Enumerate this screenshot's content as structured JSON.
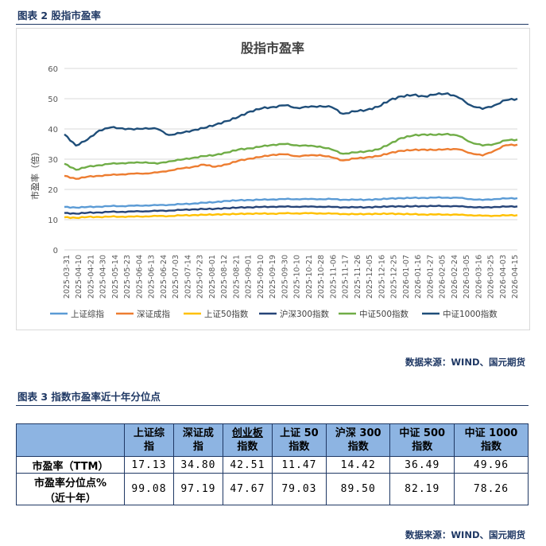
{
  "figure2": {
    "caption": "图表 2 股指市盈率",
    "source": "数据来源：WIND、国元期货"
  },
  "chart_data": {
    "type": "line",
    "title": "股指市盈率",
    "ylabel": "市盈率（倍）",
    "xlabel": "",
    "ylim": [
      0,
      60
    ],
    "yticks": [
      0,
      10,
      20,
      30,
      40,
      50,
      60
    ],
    "grid": true,
    "legend_position": "bottom",
    "x": [
      "2025-03-31",
      "2025-04-10",
      "2025-04-20",
      "2025-04-30",
      "2025-05-10",
      "2025-05-20",
      "2025-05-30",
      "2025-06-09",
      "2025-06-19",
      "2025-06-29",
      "2025-07-09",
      "2025-07-19",
      "2025-07-29",
      "2025-08-08",
      "2025-08-18",
      "2025-08-28",
      "2025-09-07",
      "2025-09-17",
      "2025-09-27",
      "2025-10-07",
      "2025-10-17",
      "2025-10-27",
      "2025-11-06",
      "2025-11-16",
      "2025-11-26",
      "2025-12-06",
      "2025-12-16",
      "2025-12-26",
      "2026-01-05",
      "2026-01-15",
      "2026-01-25",
      "2026-02-04",
      "2026-02-14",
      "2026-02-24",
      "2026-03-06",
      "2026-03-16",
      "2026-03-26",
      "2026-04-05",
      "2026-04-15",
      "2026-04-20"
    ],
    "x_tick_labels": [
      "2025-03-31",
      "2025-04-10",
      "2025-04-21",
      "2025-04-30",
      "2025-05-14",
      "2025-05-23",
      "2025-06-04",
      "2025-06-13",
      "2025-06-24",
      "2025-07-03",
      "2025-07-14",
      "2025-07-23",
      "2025-08-01",
      "2025-08-12",
      "2025-08-21",
      "2025-09-01",
      "2025-09-10",
      "2025-09-19",
      "2025-09-30",
      "2025-10-10",
      "2025-10-21",
      "2025-10-28",
      "2025-11-06",
      "2025-11-17",
      "2025-11-26",
      "2025-12-05",
      "2025-12-16",
      "2025-12-25",
      "2026-01-07",
      "2026-01-16",
      "2026-01-27",
      "2026-02-05",
      "2026-02-24",
      "2026-03-05",
      "2026-03-16",
      "2026-03-25",
      "2026-04-03",
      "2026-04-15"
    ],
    "series": [
      {
        "name": "上证综指",
        "color": "#5b9bd5",
        "values": [
          14.2,
          14.0,
          14.2,
          14.3,
          14.5,
          14.5,
          14.6,
          14.7,
          14.8,
          14.9,
          15.1,
          15.3,
          15.6,
          15.8,
          16.2,
          16.4,
          16.5,
          16.6,
          16.7,
          16.8,
          16.8,
          16.8,
          16.8,
          16.8,
          16.6,
          16.6,
          16.6,
          16.7,
          17.0,
          17.1,
          17.2,
          17.2,
          17.3,
          17.3,
          17.2,
          16.8,
          16.5,
          16.8,
          17.0,
          17.1
        ]
      },
      {
        "name": "深证成指",
        "color": "#ed7d31",
        "values": [
          24.5,
          23.5,
          24.2,
          24.5,
          24.8,
          25.0,
          25.2,
          25.3,
          25.6,
          26.2,
          26.9,
          27.4,
          28.2,
          27.5,
          28.3,
          29.5,
          30.2,
          30.8,
          31.5,
          31.6,
          31.0,
          31.2,
          31.4,
          30.6,
          29.6,
          30.2,
          30.6,
          31.0,
          32.0,
          32.8,
          33.0,
          33.2,
          33.0,
          33.4,
          33.2,
          32.0,
          31.2,
          32.8,
          34.6,
          34.8
        ]
      },
      {
        "name": "上证50指数",
        "color": "#ffc000",
        "values": [
          10.8,
          10.6,
          10.9,
          10.9,
          11.0,
          11.0,
          11.0,
          11.1,
          11.2,
          11.2,
          11.4,
          11.5,
          11.6,
          11.7,
          11.8,
          11.9,
          12.0,
          12.0,
          12.0,
          12.1,
          12.1,
          12.1,
          12.1,
          12.0,
          11.9,
          11.8,
          11.9,
          11.9,
          12.0,
          11.9,
          11.8,
          11.7,
          11.7,
          11.7,
          11.6,
          11.5,
          11.3,
          11.3,
          11.4,
          11.5
        ]
      },
      {
        "name": "沪深300指数",
        "color": "#264478",
        "values": [
          12.2,
          12.0,
          12.3,
          12.4,
          12.6,
          12.6,
          12.7,
          12.8,
          12.9,
          13.0,
          13.2,
          13.4,
          13.5,
          13.6,
          13.8,
          14.0,
          14.1,
          14.2,
          14.3,
          14.3,
          14.3,
          14.3,
          14.3,
          14.2,
          14.1,
          14.1,
          14.1,
          14.2,
          14.4,
          14.4,
          14.4,
          14.5,
          14.5,
          14.5,
          14.4,
          14.2,
          14.0,
          14.2,
          14.3,
          14.4
        ]
      },
      {
        "name": "中证500指数",
        "color": "#70ad47",
        "values": [
          28.5,
          26.5,
          27.5,
          28.0,
          28.5,
          28.7,
          28.8,
          29.0,
          28.5,
          29.3,
          29.8,
          30.4,
          31.0,
          31.4,
          32.2,
          33.2,
          33.6,
          34.2,
          34.8,
          35.0,
          34.6,
          34.4,
          34.2,
          33.2,
          31.8,
          32.2,
          32.6,
          33.2,
          35.0,
          37.0,
          37.8,
          38.2,
          38.0,
          38.4,
          37.6,
          35.6,
          34.5,
          35.0,
          36.2,
          36.5
        ]
      },
      {
        "name": "中证1000指数",
        "color": "#1f4e79",
        "values": [
          38.2,
          34.5,
          36.5,
          39.5,
          40.5,
          40.2,
          39.8,
          40.3,
          40.0,
          38.0,
          38.6,
          39.5,
          40.3,
          41.4,
          42.6,
          44.0,
          45.8,
          46.8,
          47.3,
          47.8,
          47.0,
          47.2,
          47.6,
          47.2,
          45.0,
          45.8,
          46.3,
          47.3,
          49.5,
          50.8,
          51.2,
          50.8,
          51.4,
          51.8,
          50.2,
          47.8,
          46.6,
          47.8,
          49.5,
          50.0
        ]
      }
    ]
  },
  "figure3": {
    "caption": "图表 3 指数市盈率近十年分位点",
    "source": "数据来源：WIND、国元期货",
    "columns": [
      "上证综\n指",
      "深证成\n指",
      "创业板\n指数",
      "上证 50\n指数",
      "沪深 300\n指数",
      "中证 500\n指数",
      "中证 1000\n指数"
    ],
    "rows": [
      {
        "label": "市盈率（TTM）",
        "values": [
          "17.13",
          "34.80",
          "42.51",
          "11.47",
          "14.42",
          "36.49",
          "49.96"
        ]
      },
      {
        "label": "市盈率分位点%\n（近十年）",
        "values": [
          "99.08",
          "97.19",
          "47.67",
          "79.03",
          "89.50",
          "82.19",
          "78.26"
        ]
      }
    ]
  }
}
